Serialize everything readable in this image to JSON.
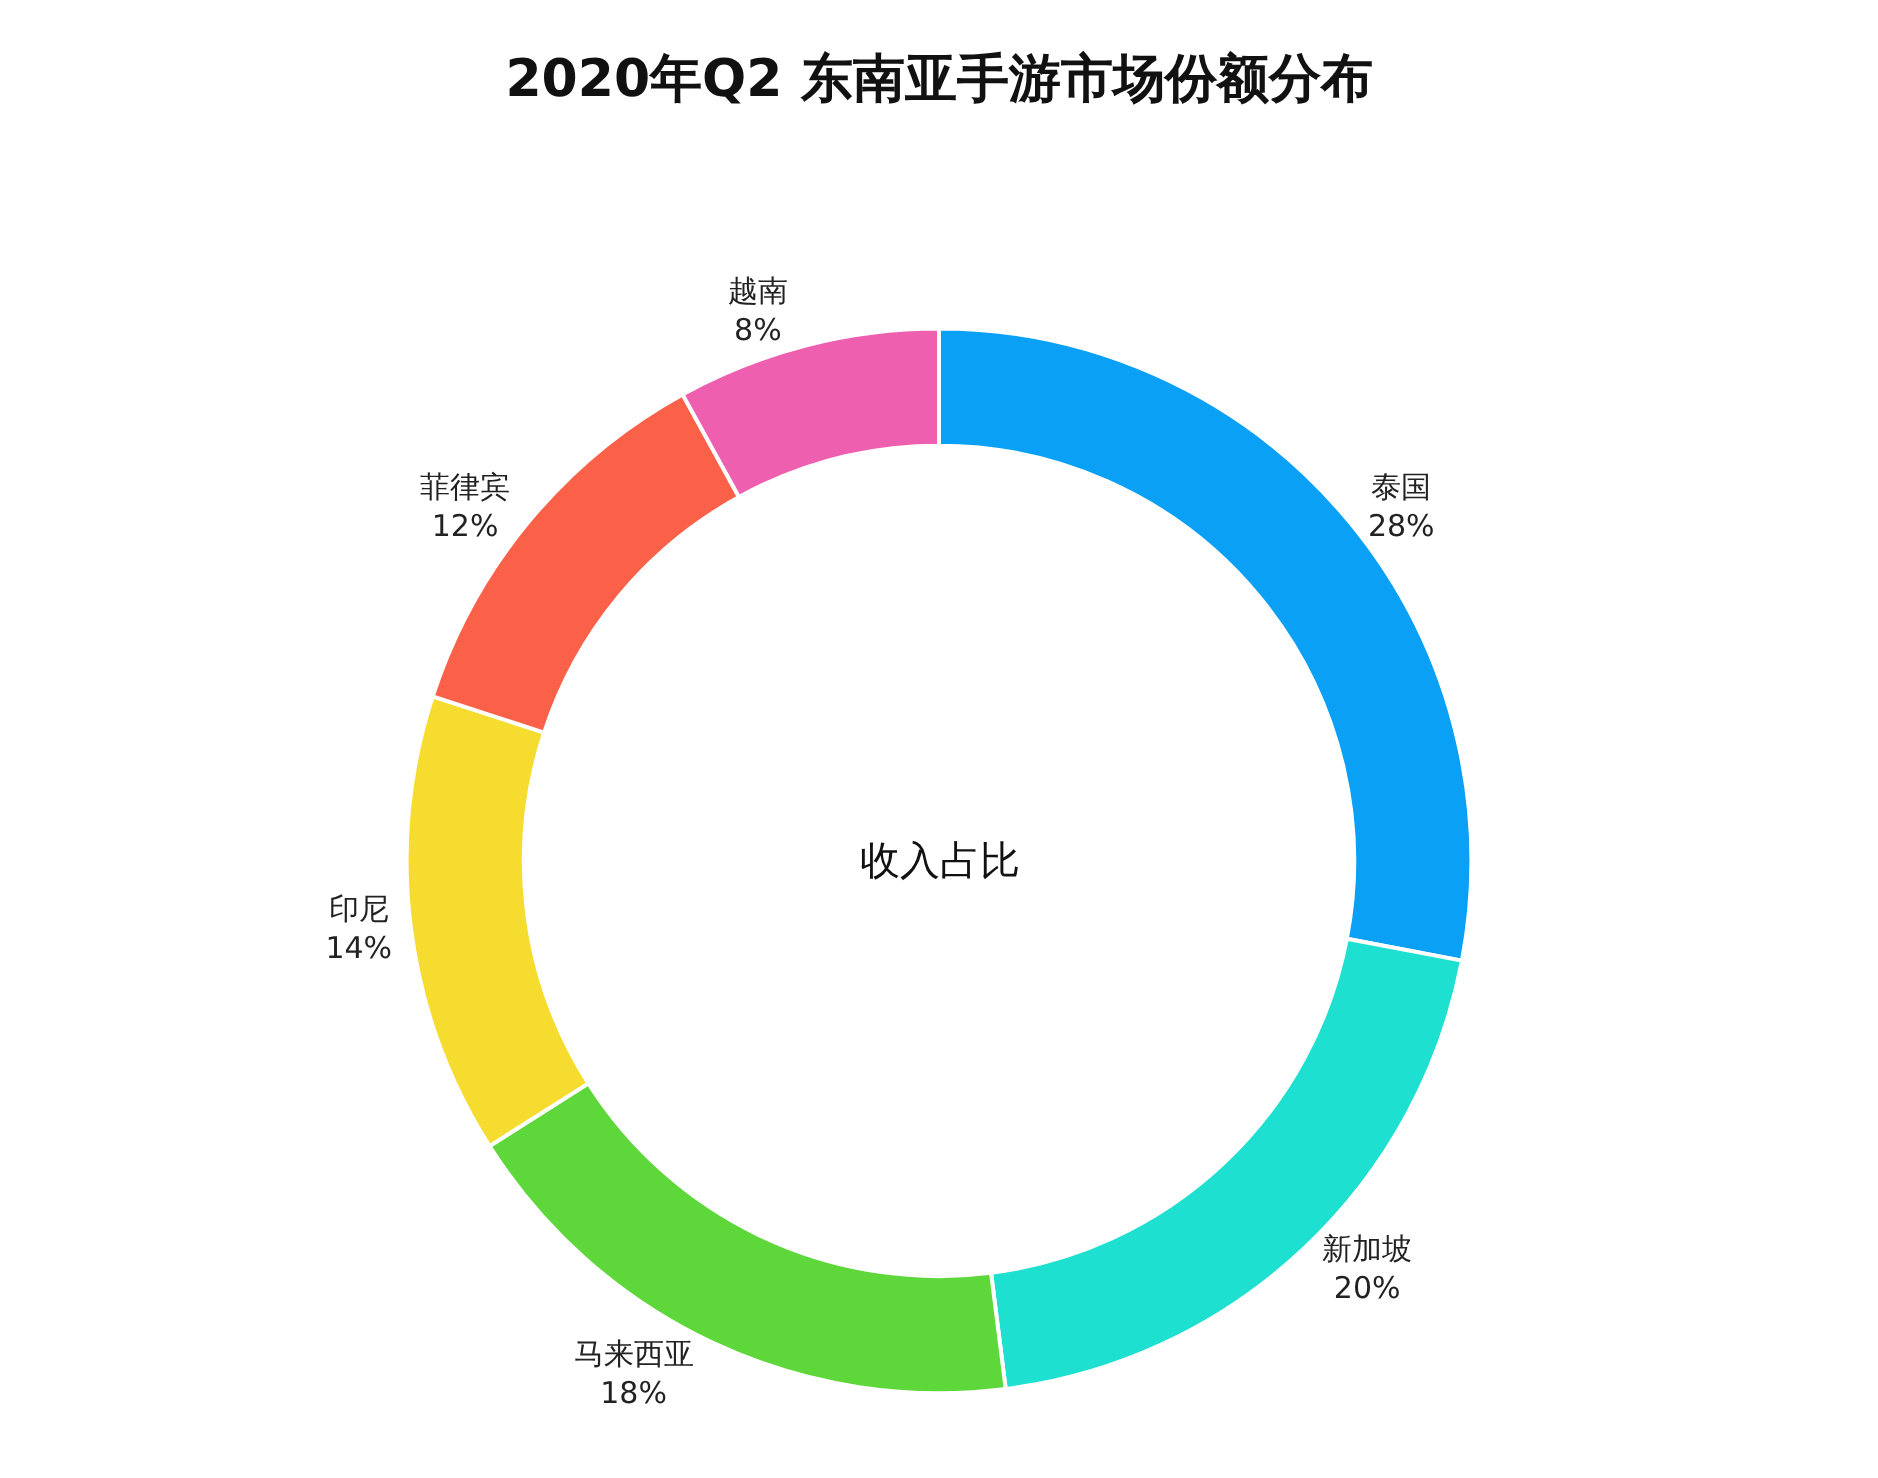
{
  "chart_data": {
    "type": "donut",
    "title": "2020年Q2 东南亚手游市场份额分布",
    "categories": [
      "泰国",
      "新加坡",
      "马来西亚",
      "印尼",
      "菲律宾",
      "越南"
    ],
    "values": [
      28,
      20,
      18,
      14,
      12,
      8
    ],
    "value_labels": [
      "28%",
      "20%",
      "18%",
      "14%",
      "12%",
      "8%"
    ],
    "colors": [
      "#0aa0f5",
      "#1de0d0",
      "#5ed73a",
      "#f6dc2e",
      "#fa6148",
      "#ef5fb0"
    ],
    "annotations": [
      "收入占比"
    ],
    "legend": false
  }
}
